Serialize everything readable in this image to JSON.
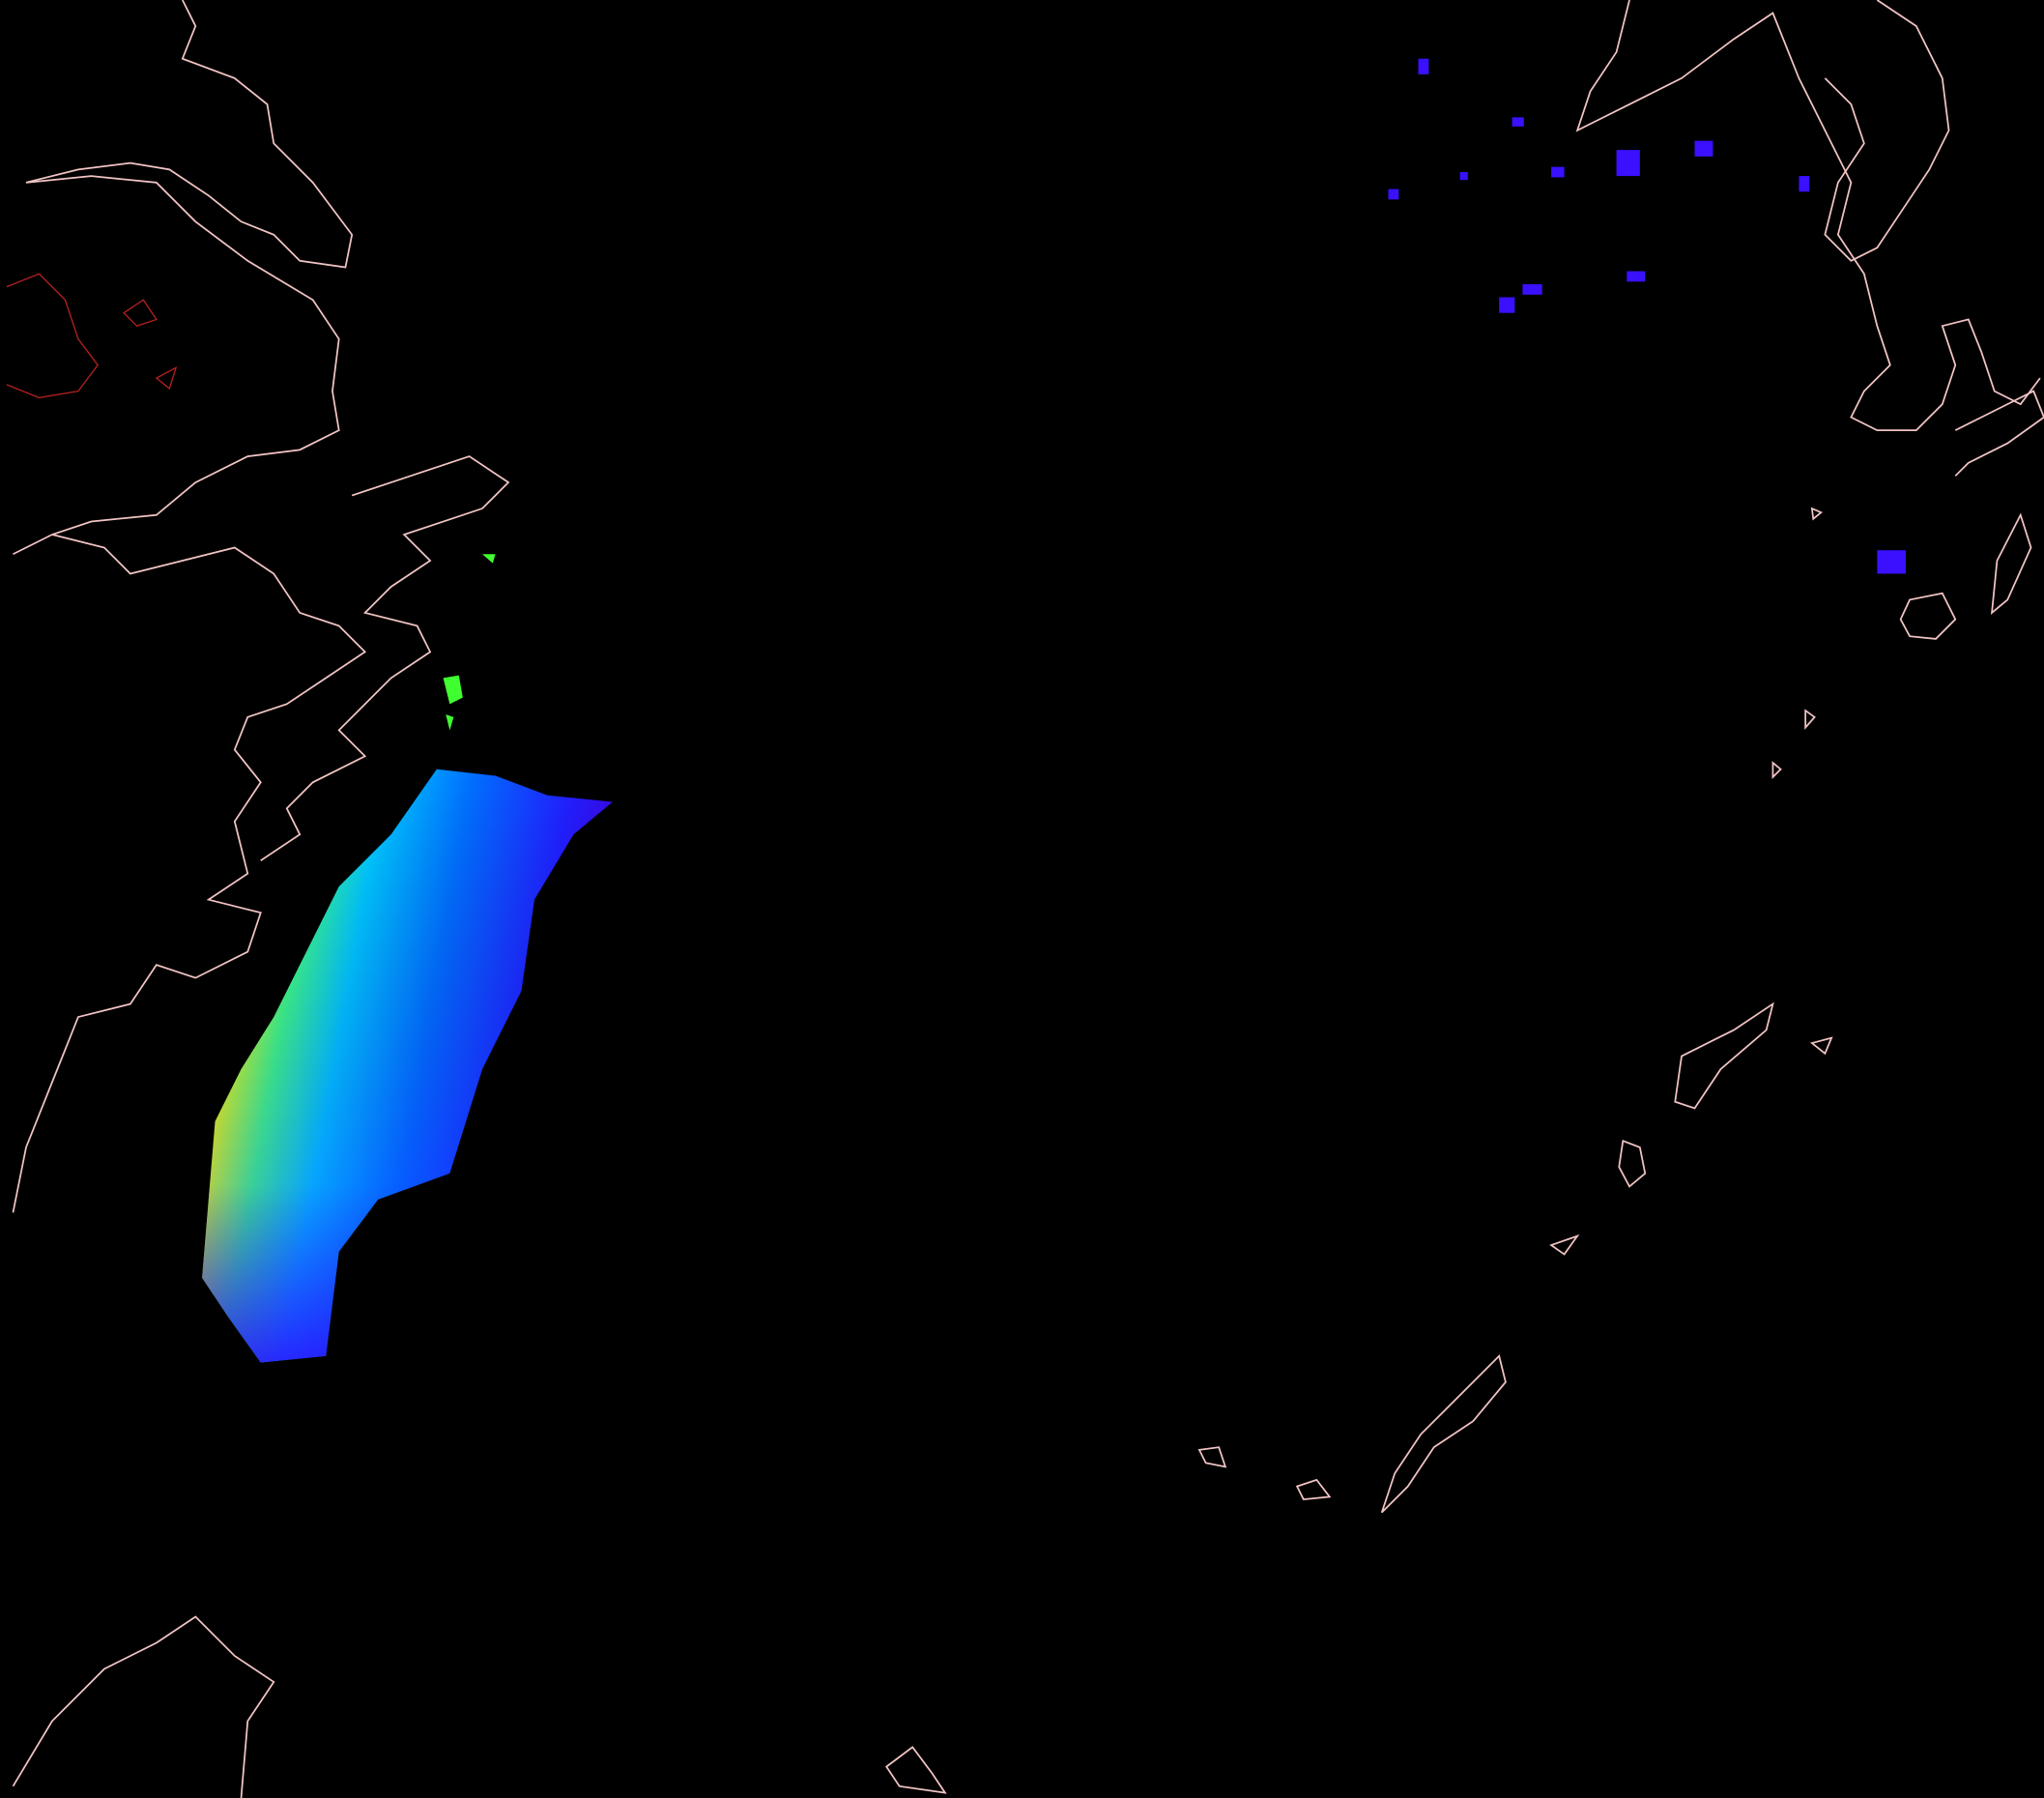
{
  "map": {
    "background_color": "#000000",
    "coastline_color": "#f2c4c4",
    "inland_water_color": "#b02020",
    "colormap": [
      "#4000ff",
      "#0040ff",
      "#0090ff",
      "#00d0ff",
      "#40ff60",
      "#e0ff00",
      "#ffff00"
    ],
    "labels": []
  }
}
